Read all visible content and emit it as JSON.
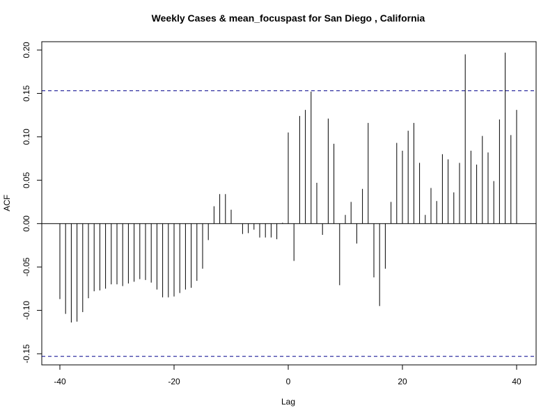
{
  "chart_data": {
    "type": "bar",
    "subtype": "acf-stem",
    "title": "Weekly Cases & mean_focuspast for San Diego , California",
    "xlabel": "Lag",
    "ylabel": "ACF",
    "xlim": [
      -40,
      40
    ],
    "ylim": [
      -0.15,
      0.2
    ],
    "x_ticks": [
      -40,
      -20,
      0,
      20,
      40
    ],
    "x_tick_labels": [
      "-40",
      "-20",
      "0",
      "20",
      "40"
    ],
    "y_ticks": [
      -0.15,
      -0.1,
      -0.05,
      0,
      0.05,
      0.1,
      0.15,
      0.2
    ],
    "y_tick_labels": [
      "-0.15",
      "-0.10",
      "-0.05",
      "0.00",
      "0.05",
      "0.10",
      "0.15",
      "0.20"
    ],
    "confidence_band": 0.153,
    "band_color": "#00008b",
    "bar_color": "#000000",
    "grid": false,
    "lags": [
      -40,
      -39,
      -38,
      -37,
      -36,
      -35,
      -34,
      -33,
      -32,
      -31,
      -30,
      -29,
      -28,
      -27,
      -26,
      -25,
      -24,
      -23,
      -22,
      -21,
      -20,
      -19,
      -18,
      -17,
      -16,
      -15,
      -14,
      -13,
      -12,
      -11,
      -10,
      -9,
      -8,
      -7,
      -6,
      -5,
      -4,
      -3,
      -2,
      -1,
      0,
      1,
      2,
      3,
      4,
      5,
      6,
      7,
      8,
      9,
      10,
      11,
      12,
      13,
      14,
      15,
      16,
      17,
      18,
      19,
      20,
      21,
      22,
      23,
      24,
      25,
      26,
      27,
      28,
      29,
      30,
      31,
      32,
      33,
      34,
      35,
      36,
      37,
      38,
      39,
      40
    ],
    "acf": [
      -0.087,
      -0.104,
      -0.114,
      -0.113,
      -0.102,
      -0.086,
      -0.078,
      -0.077,
      -0.075,
      -0.07,
      -0.07,
      -0.072,
      -0.069,
      -0.067,
      -0.064,
      -0.065,
      -0.068,
      -0.076,
      -0.085,
      -0.085,
      -0.084,
      -0.08,
      -0.076,
      -0.074,
      -0.066,
      -0.052,
      -0.019,
      0.02,
      0.034,
      0.034,
      0.016,
      0.0,
      -0.012,
      -0.011,
      -0.007,
      -0.016,
      -0.016,
      -0.016,
      -0.018,
      0.001,
      0.105,
      -0.043,
      0.124,
      0.131,
      0.152,
      0.047,
      -0.013,
      0.121,
      0.092,
      -0.071,
      0.01,
      0.025,
      -0.023,
      0.04,
      0.116,
      -0.062,
      -0.095,
      -0.052,
      0.025,
      0.093,
      0.084,
      0.107,
      0.116,
      0.07,
      0.01,
      0.041,
      0.026,
      0.08,
      0.074,
      0.036,
      0.07,
      0.195,
      0.084,
      0.068,
      0.101,
      0.082,
      0.049,
      0.12,
      0.197,
      0.102,
      0.131
    ]
  }
}
